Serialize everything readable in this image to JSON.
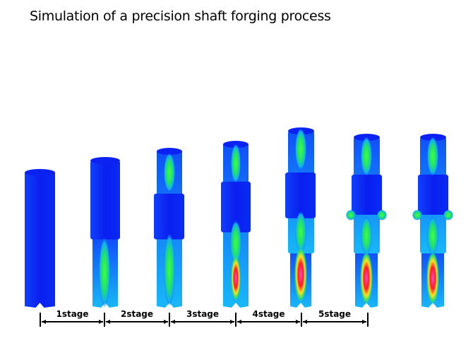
{
  "title": "Simulation of a precision shaft forging process",
  "stages": [
    "1stage",
    "2stage",
    "3stage",
    "4stage",
    "5stage"
  ],
  "colors": {
    "cold": "#0a1ff0",
    "mid": "#22e06a",
    "hot": "#ff1a30",
    "peak": "#ff4fc0"
  }
}
